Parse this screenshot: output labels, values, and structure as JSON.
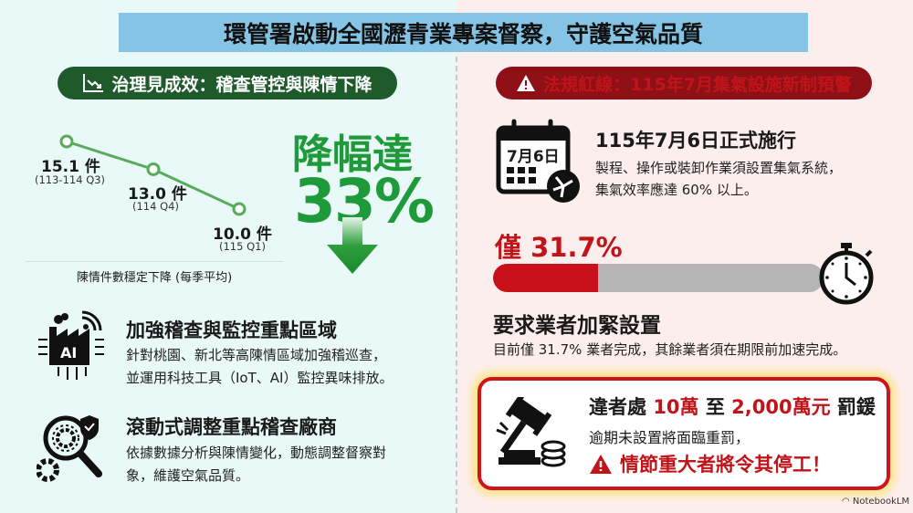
{
  "title": "環管署啟動全國瀝青業專案督察，守護空氣品質",
  "left": {
    "header": {
      "icon": "trend-down-chart-icon",
      "label": "治理見成效：稽查管控與陳情下降"
    },
    "chart_data": {
      "type": "line",
      "categories": [
        "(113-114 Q3)",
        "(114 Q4)",
        "(115 Q1)"
      ],
      "values": [
        15.1,
        13.0,
        10.0
      ],
      "value_labels": [
        "15.1 件",
        "13.0 件",
        "10.0 件"
      ],
      "caption": "陳情件數穩定下降 (每季平均)",
      "color": "#5aaa5c"
    },
    "reduction": {
      "label": "降幅達",
      "value": "33%",
      "icon": "down-arrow-icon"
    },
    "items": [
      {
        "icon": "ai-factory-icon",
        "heading": "加強稽查與監控重點區域",
        "lines": [
          "針對桃園、新北等高陳情區域加強稽巡查，",
          "並運用科技工具（IoT、AI）監控異味排放。"
        ]
      },
      {
        "icon": "magnifier-gear-shield-icon",
        "heading": "滾動式調整重點稽查廠商",
        "lines": [
          "依據數據分析與陳情變化，動態調整督察對",
          "象，維護空氣品質。"
        ]
      }
    ]
  },
  "right": {
    "header": {
      "icon": "warning-icon",
      "label": "法規紅線：115年7月集氣設施新制預警"
    },
    "effective": {
      "calendar_text": "7月6日",
      "icon": "calendar-fan-icon",
      "heading": "115年7月6日正式施行",
      "lines": [
        "製程、操作或裝卸作業須設置集氣系統，",
        "集氣效率應達 60% 以上。"
      ]
    },
    "progress": {
      "label": "僅 31.7%",
      "percent": 31.7,
      "fill_color": "#c8101a",
      "icon": "stopwatch-icon",
      "heading": "要求業者加緊設置",
      "body": "目前僅 31.7% 業者完成，其餘業者須在期限前加速完成。"
    },
    "penalty": {
      "icon": "gavel-coins-icon",
      "line1": {
        "prefix": "違者處 ",
        "min": "10萬",
        "mid": " 至 ",
        "max": "2,000萬元",
        "suffix": " 罰鍰"
      },
      "line2": "逾期未設置將面臨重罰，",
      "line3": "情節重大者將令其停工！"
    }
  },
  "watermark": "NotebookLM"
}
